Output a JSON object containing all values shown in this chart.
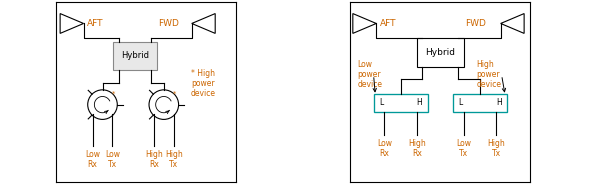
{
  "fig_width": 5.89,
  "fig_height": 1.84,
  "dpi": 100,
  "bg_color": "#ffffff",
  "border_color": "#000000",
  "line_color": "#000000",
  "orange_color": "#cc6600",
  "cyan_color": "#009999",
  "text_color": "#000000",
  "diagram1": {
    "aft_label": "AFT",
    "fwd_label": "FWD",
    "hybrid_label": "Hybrid",
    "note": "* High\npower\ndevice",
    "labels_bottom": [
      "Low\nRx",
      "Low\nTx",
      "High\nRx",
      "High\nTx"
    ]
  },
  "diagram2": {
    "aft_label": "AFT",
    "fwd_label": "FWD",
    "hybrid_label": "Hybrid",
    "low_power_label": "Low\npower\ndevice",
    "high_power_label": "High\npower\ndevice",
    "labels_bottom": [
      "Low\nRx",
      "High\nRx",
      "Low\nTx",
      "High\nTx"
    ]
  }
}
